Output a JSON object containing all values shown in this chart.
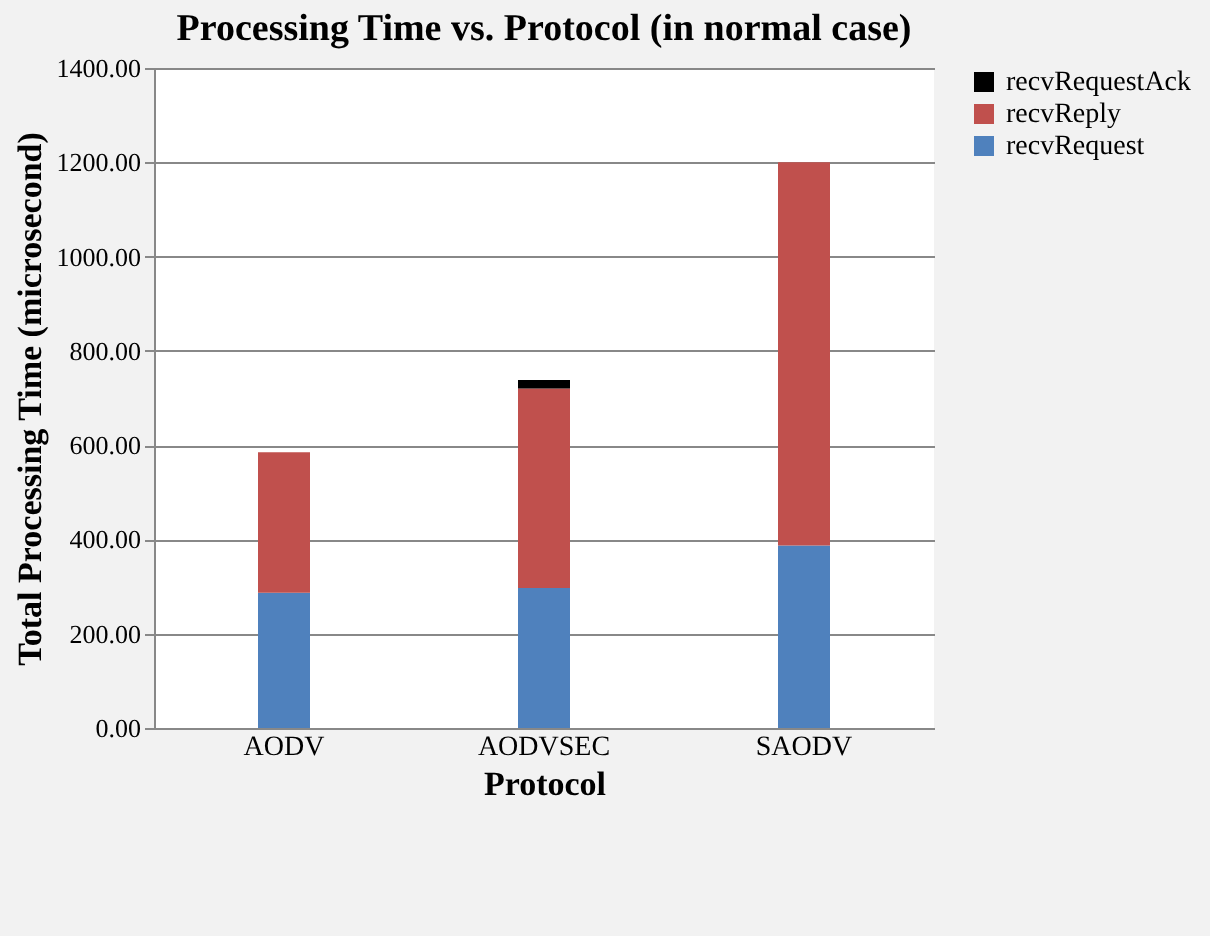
{
  "chart_data": {
    "type": "bar",
    "stacked": true,
    "title": "Processing Time vs. Protocol (in normal case)",
    "xlabel": "Protocol",
    "ylabel": "Total Processing Time (microsecond)",
    "categories": [
      "AODV",
      "AODVSEC",
      "SAODV"
    ],
    "series": [
      {
        "name": "recvRequest",
        "color": "#4f81bd",
        "values": [
          287,
          297,
          387
        ]
      },
      {
        "name": "recvReply",
        "color": "#c0504d",
        "values": [
          298,
          423,
          813
        ]
      },
      {
        "name": "recvRequestAck",
        "color": "#000000",
        "values": [
          0,
          18,
          0
        ]
      }
    ],
    "ylim": [
      0,
      1400
    ],
    "yticks": [
      {
        "value": 0,
        "label": "0.00"
      },
      {
        "value": 200,
        "label": "200.00"
      },
      {
        "value": 400,
        "label": "400.00"
      },
      {
        "value": 600,
        "label": "600.00"
      },
      {
        "value": 800,
        "label": "800.00"
      },
      {
        "value": 1000,
        "label": "1000.00"
      },
      {
        "value": 1200,
        "label": "1200.00"
      },
      {
        "value": 1400,
        "label": "1400.00"
      }
    ],
    "grid": "y",
    "legend": "right"
  }
}
